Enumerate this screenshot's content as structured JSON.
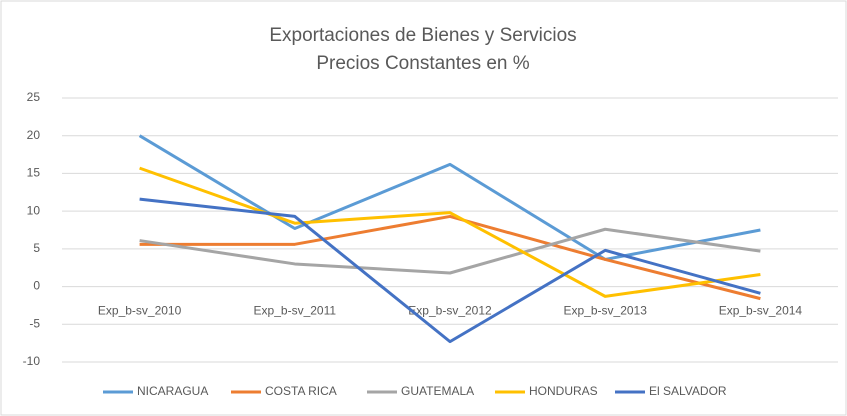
{
  "chart_data": {
    "type": "line",
    "title": "Exportaciones de Bienes y Servicios",
    "subtitle": "Precios Constantes en %",
    "categories": [
      "Exp_b-sv_2010",
      "Exp_b-sv_2011",
      "Exp_b-sv_2012",
      "Exp_b-sv_2013",
      "Exp_b-sv_2014"
    ],
    "series": [
      {
        "name": "NICARAGUA",
        "color": "#5b9bd5",
        "values": [
          20,
          7.7,
          16.2,
          3.6,
          7.5
        ]
      },
      {
        "name": "COSTA RICA",
        "color": "#ed7d31",
        "values": [
          5.6,
          5.6,
          9.3,
          3.6,
          -1.6
        ]
      },
      {
        "name": "GUATEMALA",
        "color": "#a5a5a5",
        "values": [
          6.1,
          3.0,
          1.8,
          7.6,
          4.7
        ]
      },
      {
        "name": "HONDURAS",
        "color": "#ffc000",
        "values": [
          15.7,
          8.4,
          9.8,
          -1.3,
          1.6
        ]
      },
      {
        "name": "El SALVADOR",
        "color": "#4472c4",
        "values": [
          11.6,
          9.3,
          -7.3,
          4.8,
          -0.9
        ]
      }
    ],
    "ylim": [
      -10,
      25
    ],
    "yticks": [
      -10,
      -5,
      0,
      5,
      10,
      15,
      20,
      25
    ],
    "grid": true,
    "legend": "bottom"
  }
}
